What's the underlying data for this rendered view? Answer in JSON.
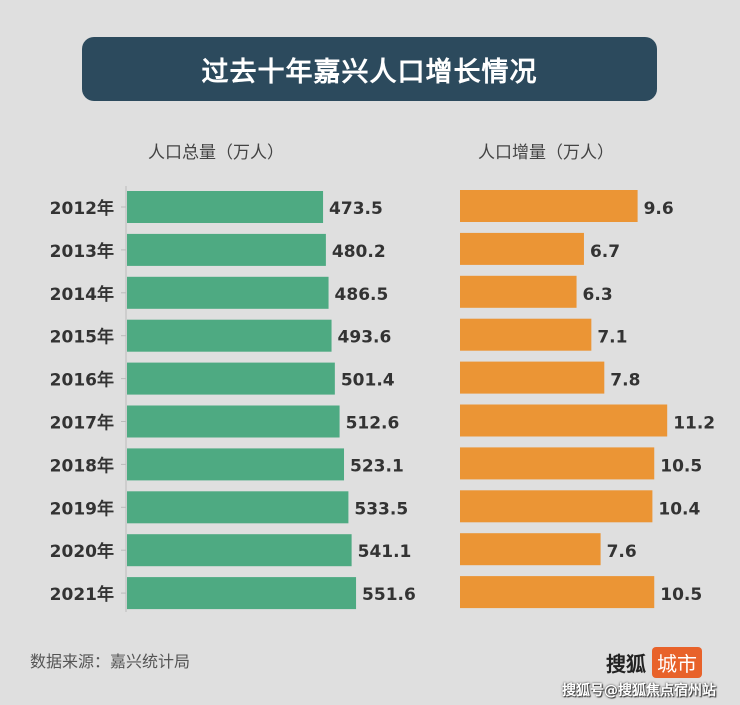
{
  "title": "过去十年嘉兴人口增长情况",
  "source": "数据来源：嘉兴统计局",
  "logo": {
    "name": "搜狐",
    "tag": "城市"
  },
  "watermark": "搜狐号@搜狐焦点宿州站",
  "chart_data": [
    {
      "type": "bar",
      "orientation": "horizontal",
      "title": "人口总量（万人）",
      "categories": [
        "2012年",
        "2013年",
        "2014年",
        "2015年",
        "2016年",
        "2017年",
        "2018年",
        "2019年",
        "2020年",
        "2021年"
      ],
      "values": [
        473.5,
        480.2,
        486.5,
        493.6,
        501.4,
        512.6,
        523.1,
        533.5,
        541.1,
        551.6
      ],
      "color": "#4eaa82"
    },
    {
      "type": "bar",
      "orientation": "horizontal",
      "title": "人口增量（万人）",
      "categories": [
        "2012年",
        "2013年",
        "2014年",
        "2015年",
        "2016年",
        "2017年",
        "2018年",
        "2019年",
        "2020年",
        "2021年"
      ],
      "values": [
        9.6,
        6.7,
        6.3,
        7.1,
        7.8,
        11.2,
        10.5,
        10.4,
        7.6,
        10.5
      ],
      "color": "#eb9535"
    }
  ]
}
